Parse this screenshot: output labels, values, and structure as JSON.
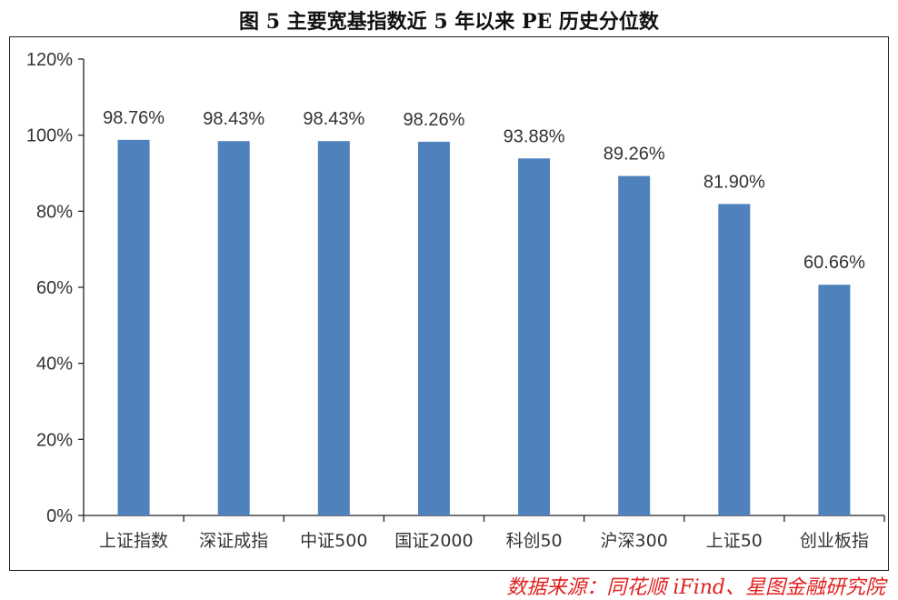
{
  "figure": {
    "title": "图 5 主要宽基指数近 5 年以来 PE 历史分位数",
    "source": "数据来源：同花顺 iFind、星图金融研究院"
  },
  "colors": {
    "bar": "#4f81bd",
    "axis": "#222222",
    "text": "#333333",
    "source": "#e0201f"
  },
  "chart_data": {
    "type": "bar",
    "title": "图 5 主要宽基指数近 5 年以来 PE 历史分位数",
    "xlabel": "",
    "ylabel": "",
    "categories": [
      "上证指数",
      "深证成指",
      "中证500",
      "国证2000",
      "科创50",
      "沪深300",
      "上证50",
      "创业板指"
    ],
    "values": [
      98.76,
      98.43,
      98.43,
      98.26,
      93.88,
      89.26,
      81.9,
      60.66
    ],
    "data_labels": [
      "98.76%",
      "98.43%",
      "98.43%",
      "98.26%",
      "93.88%",
      "89.26%",
      "81.90%",
      "60.66%"
    ],
    "ylim": [
      0,
      120
    ],
    "yticks": [
      0,
      20,
      40,
      60,
      80,
      100,
      120
    ],
    "ytick_labels": [
      "0%",
      "20%",
      "40%",
      "60%",
      "80%",
      "100%",
      "120%"
    ],
    "grid": false,
    "legend": "none"
  }
}
